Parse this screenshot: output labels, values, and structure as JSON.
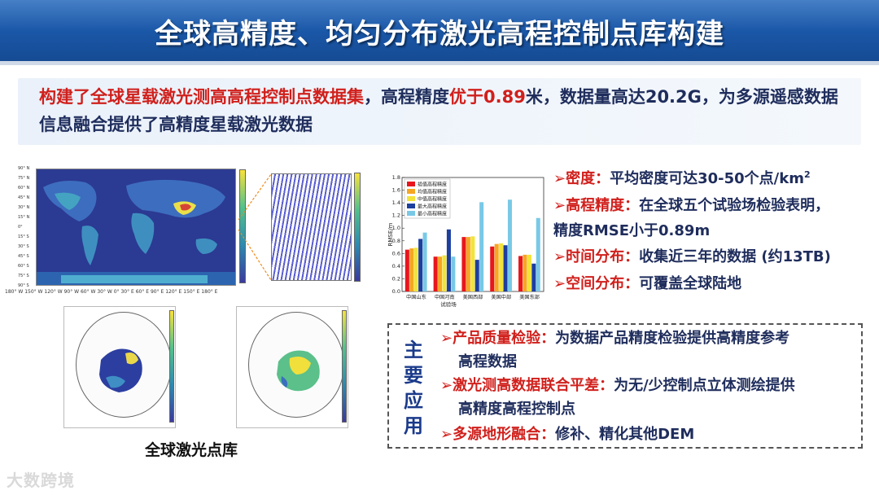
{
  "title": "全球高精度、均匀分布激光高程控制点库构建",
  "summary": {
    "part1_red": "构建了全球星载激光测高高程控制点数据集",
    "part2": "，高程精度",
    "part3_red": "优于0.89",
    "part4": "米，数据量高达20.2G，为多源遥感数据信息融合提供了高精度星载激光数据"
  },
  "maps": {
    "colorbar_label": "height/meters",
    "lat_labels": [
      "90° N",
      "75° N",
      "60° N",
      "45° N",
      "30° N",
      "15° N",
      "0°",
      "15° S",
      "30° S",
      "45° S",
      "60° S",
      "75° S",
      "90° S"
    ],
    "lon_labels": "180° W 150° W 120° W 90° W 60° W 30° W 0° 30° E 60° E 90° E 120° E 150° E 180° E",
    "caption": "全球激光点库"
  },
  "chart_data": {
    "type": "bar",
    "categories": [
      "中国山东",
      "中国河南",
      "美国西部",
      "美国中部",
      "美国东部"
    ],
    "xlabel": "试验场",
    "ylabel": "RMSE/m",
    "ylim": [
      0,
      1.8
    ],
    "yticks": [
      0,
      0.2,
      0.4,
      0.6,
      0.8,
      1.0,
      1.2,
      1.4,
      1.6,
      1.8
    ],
    "legend": "top-left",
    "series": [
      {
        "name": "插值高程精度",
        "color": "#e8161b",
        "values": [
          0.66,
          0.55,
          0.86,
          0.71,
          0.56
        ]
      },
      {
        "name": "均值高程精度",
        "color": "#f6a623",
        "values": [
          0.68,
          0.55,
          0.86,
          0.75,
          0.58
        ]
      },
      {
        "name": "中值高程精度",
        "color": "#f2e33a",
        "values": [
          0.69,
          0.57,
          0.87,
          0.76,
          0.58
        ]
      },
      {
        "name": "最大高程精度",
        "color": "#1d3f9e",
        "values": [
          0.83,
          0.98,
          0.5,
          0.73,
          0.44
        ]
      },
      {
        "name": "最小高程精度",
        "color": "#79c9e6",
        "values": [
          0.93,
          0.55,
          1.41,
          1.45,
          1.16
        ]
      }
    ]
  },
  "bullets": [
    {
      "mark": "➢",
      "key": "密度：",
      "text": "平均密度可达30-50个点/km",
      "sup": "2",
      "cont": ""
    },
    {
      "mark": "➢",
      "key": "高程精度：",
      "text": "在全球五个试验场检验表明，",
      "sup": "",
      "cont": "精度RMSE小于0.89m"
    },
    {
      "mark": "➢",
      "key": "时间分布：",
      "text": "收集近三年的数据 (约13TB)",
      "sup": "",
      "cont": ""
    },
    {
      "mark": "➢",
      "key": "空间分布：",
      "text": "可覆盖全球陆地",
      "sup": "",
      "cont": ""
    }
  ],
  "applications": {
    "label": [
      "主",
      "要",
      "应",
      "用"
    ],
    "items": [
      {
        "mark": "➢",
        "key": "产品质量检验：",
        "text": "为数据产品精度检验提供高精度参考",
        "cont": "高程数据"
      },
      {
        "mark": "➢",
        "key": "激光测高数据联合平差：",
        "text": "为无/少控制点立体测绘提供",
        "cont": "高精度高程控制点"
      },
      {
        "mark": "➢",
        "key": "多源地形融合：",
        "text": "修补、精化其他DEM",
        "cont": ""
      }
    ]
  },
  "logo": "大数跨境"
}
